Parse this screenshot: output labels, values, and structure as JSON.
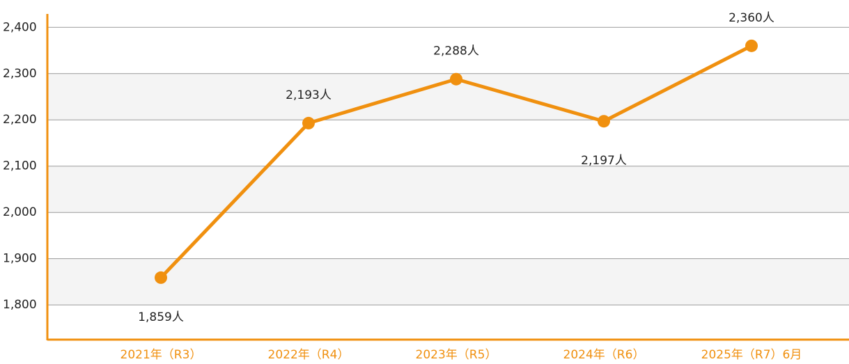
{
  "chart_data": {
    "type": "line",
    "categories": [
      "2021年（R3）",
      "2022年（R4）",
      "2023年（R5）",
      "2024年（R6）",
      "2025年（R7）6月"
    ],
    "series": [
      {
        "color": "#f0900f",
        "values": [
          1859,
          2193,
          2288,
          2197,
          2360
        ],
        "value_labels": [
          "1,859人",
          "2,193人",
          "2,288人",
          "2,197人",
          "2,360人"
        ]
      }
    ],
    "ylim": [
      1725,
      2429
    ],
    "yticks": [
      {
        "value": 1800,
        "label": "1,800"
      },
      {
        "value": 1900,
        "label": "1,900"
      },
      {
        "value": 2000,
        "label": "2,000"
      },
      {
        "value": 2100,
        "label": "2,100"
      },
      {
        "value": 2200,
        "label": "2,200"
      },
      {
        "value": 2300,
        "label": "2,300"
      },
      {
        "value": 2400,
        "label": "2,400"
      }
    ],
    "grid": true
  }
}
